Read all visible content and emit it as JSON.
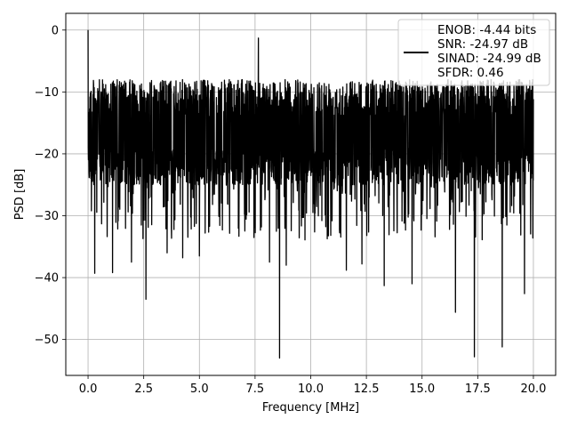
{
  "chart_data": {
    "type": "line",
    "xlabel": "Frequency [MHz]",
    "ylabel": "PSD [dB]",
    "xlim": [
      -1.0,
      21.0
    ],
    "ylim": [
      -55.8,
      2.7
    ],
    "x_ticks": [
      0.0,
      2.5,
      5.0,
      7.5,
      10.0,
      12.5,
      15.0,
      17.5,
      20.0
    ],
    "x_tick_labels": [
      "0.0",
      "2.5",
      "5.0",
      "7.5",
      "10.0",
      "12.5",
      "15.0",
      "17.5",
      "20.0"
    ],
    "y_ticks": [
      0,
      -10,
      -20,
      -30,
      -40,
      -50
    ],
    "y_tick_labels": [
      "0",
      "−10",
      "−20",
      "−30",
      "−40",
      "−50"
    ],
    "grid": true,
    "legend_position": "top-right",
    "series": [
      {
        "color": "#000000",
        "x_range": [
          0.0,
          20.0
        ],
        "typical_band_db": [
          -25,
          -8
        ],
        "notable_points": [
          {
            "x": 0.0,
            "y": 0.0
          },
          {
            "x": 0.3,
            "y": -39.3
          },
          {
            "x": 1.1,
            "y": -39.2
          },
          {
            "x": 1.95,
            "y": -37.5
          },
          {
            "x": 2.6,
            "y": -43.5
          },
          {
            "x": 3.55,
            "y": -36.0
          },
          {
            "x": 4.25,
            "y": -36.8
          },
          {
            "x": 5.0,
            "y": -36.5
          },
          {
            "x": 7.65,
            "y": -1.3
          },
          {
            "x": 8.15,
            "y": -37.5
          },
          {
            "x": 8.6,
            "y": -53.0
          },
          {
            "x": 8.9,
            "y": -38.0
          },
          {
            "x": 11.6,
            "y": -38.8
          },
          {
            "x": 12.3,
            "y": -37.8
          },
          {
            "x": 13.3,
            "y": -41.3
          },
          {
            "x": 14.55,
            "y": -41.0
          },
          {
            "x": 16.5,
            "y": -45.6
          },
          {
            "x": 17.35,
            "y": -52.8
          },
          {
            "x": 18.6,
            "y": -51.2
          },
          {
            "x": 19.6,
            "y": -42.6
          }
        ]
      }
    ],
    "legend": {
      "lines": [
        "ENOB: -4.44 bits",
        "SNR: -24.97 dB",
        "SINAD: -24.99 dB",
        "SFDR: 0.46"
      ]
    }
  }
}
